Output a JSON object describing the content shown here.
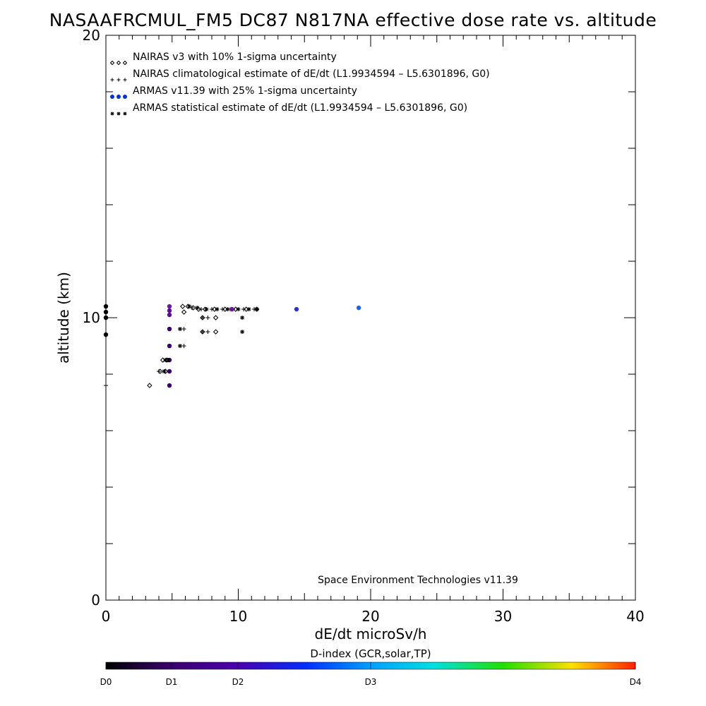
{
  "chart_data": {
    "type": "scatter",
    "title": "NASAAFRCMUL_FM5 DC87 N817NA effective dose rate vs. altitude",
    "xlabel": "dE/dt microSv/h",
    "ylabel": "altitude (km)",
    "xlim": [
      0,
      40
    ],
    "ylim": [
      0,
      20
    ],
    "x_ticks": [
      0,
      10,
      20,
      30,
      40
    ],
    "y_ticks": [
      0,
      10,
      20
    ],
    "grid": false,
    "legend_placement": "top-left",
    "credit": "Space Environment Technologies v11.39",
    "colorbar": {
      "title": "D-index (GCR,solar,TP)",
      "ticks": [
        {
          "label": "D0",
          "value": 0
        },
        {
          "label": "D1",
          "value": 1
        },
        {
          "label": "D2",
          "value": 2
        },
        {
          "label": "D3",
          "value": 3
        },
        {
          "label": "D4",
          "value": 4
        }
      ]
    },
    "series": [
      {
        "name": "NAIRAS v3 with 10% 1-sigma uncertainty",
        "marker": "diamond",
        "color": "#000000",
        "points": [
          {
            "x": 3.3,
            "y": 7.6
          },
          {
            "x": 4.1,
            "y": 8.1
          },
          {
            "x": 4.5,
            "y": 8.1
          },
          {
            "x": 4.3,
            "y": 8.5
          },
          {
            "x": 4.6,
            "y": 8.5
          },
          {
            "x": 5.9,
            "y": 10.2
          },
          {
            "x": 7.3,
            "y": 9.5
          },
          {
            "x": 8.3,
            "y": 9.5
          },
          {
            "x": 7.3,
            "y": 10.0
          },
          {
            "x": 8.3,
            "y": 10.0
          },
          {
            "x": 5.8,
            "y": 10.4
          },
          {
            "x": 6.2,
            "y": 10.4
          },
          {
            "x": 6.6,
            "y": 10.35
          },
          {
            "x": 7.0,
            "y": 10.3
          },
          {
            "x": 7.5,
            "y": 10.3
          },
          {
            "x": 8.2,
            "y": 10.3
          },
          {
            "x": 9.0,
            "y": 10.3
          },
          {
            "x": 9.8,
            "y": 10.3
          },
          {
            "x": 10.6,
            "y": 10.3
          },
          {
            "x": 11.4,
            "y": 10.3
          }
        ]
      },
      {
        "name": "NAIRAS climatological estimate of dE/dt (L1.9934594 – L5.6301896, G0)",
        "marker": "plus",
        "color": "#000000",
        "points": [
          {
            "x": 0.0,
            "y": 7.6
          },
          {
            "x": 4.0,
            "y": 8.1
          },
          {
            "x": 4.4,
            "y": 8.1
          },
          {
            "x": 5.6,
            "y": 9.0
          },
          {
            "x": 5.9,
            "y": 9.0
          },
          {
            "x": 5.6,
            "y": 9.6
          },
          {
            "x": 5.9,
            "y": 9.6
          },
          {
            "x": 7.3,
            "y": 9.5
          },
          {
            "x": 7.7,
            "y": 9.5
          },
          {
            "x": 7.3,
            "y": 10.0
          },
          {
            "x": 7.7,
            "y": 10.0
          },
          {
            "x": 6.5,
            "y": 10.35
          },
          {
            "x": 7.2,
            "y": 10.3
          },
          {
            "x": 8.0,
            "y": 10.3
          },
          {
            "x": 8.8,
            "y": 10.3
          },
          {
            "x": 9.6,
            "y": 10.3
          },
          {
            "x": 10.4,
            "y": 10.3
          },
          {
            "x": 11.2,
            "y": 10.3
          }
        ]
      },
      {
        "name": "ARMAS v11.39 with 25% 1-sigma uncertainty",
        "marker": "dot",
        "color": "#0033cc",
        "points": [
          {
            "x": 0.0,
            "y": 10.4,
            "c": "#000000"
          },
          {
            "x": 0.0,
            "y": 10.2,
            "c": "#000000"
          },
          {
            "x": 0.0,
            "y": 10.0,
            "c": "#000000"
          },
          {
            "x": 0.0,
            "y": 9.4,
            "c": "#000000"
          },
          {
            "x": 4.8,
            "y": 7.6,
            "c": "#3a006a"
          },
          {
            "x": 4.8,
            "y": 8.1,
            "c": "#3a006a"
          },
          {
            "x": 4.8,
            "y": 8.5,
            "c": "#3a006a"
          },
          {
            "x": 4.8,
            "y": 9.0,
            "c": "#3a006a"
          },
          {
            "x": 4.8,
            "y": 9.6,
            "c": "#3a006a"
          },
          {
            "x": 4.8,
            "y": 10.1,
            "c": "#5a1090"
          },
          {
            "x": 4.8,
            "y": 10.25,
            "c": "#5a1090"
          },
          {
            "x": 4.8,
            "y": 10.4,
            "c": "#6a1aa0"
          },
          {
            "x": 9.5,
            "y": 10.3,
            "c": "#6a1aa0"
          },
          {
            "x": 14.4,
            "y": 10.3,
            "c": "#2a30e0"
          },
          {
            "x": 19.1,
            "y": 10.35,
            "c": "#1f5ff0"
          }
        ]
      },
      {
        "name": "ARMAS statistical estimate of dE/dt (L1.9934594 – L5.6301896, G0)",
        "marker": "asterisk",
        "color": "#000000",
        "points": [
          {
            "x": 4.4,
            "y": 8.1
          },
          {
            "x": 4.5,
            "y": 8.5
          },
          {
            "x": 4.7,
            "y": 8.5
          },
          {
            "x": 5.6,
            "y": 9.6
          },
          {
            "x": 5.6,
            "y": 9.0
          },
          {
            "x": 10.3,
            "y": 9.5
          },
          {
            "x": 10.3,
            "y": 10.0
          },
          {
            "x": 6.3,
            "y": 10.4
          },
          {
            "x": 6.9,
            "y": 10.35
          },
          {
            "x": 7.6,
            "y": 10.3
          },
          {
            "x": 8.4,
            "y": 10.3
          },
          {
            "x": 9.2,
            "y": 10.3
          },
          {
            "x": 10.0,
            "y": 10.3
          },
          {
            "x": 10.8,
            "y": 10.3
          },
          {
            "x": 11.4,
            "y": 10.3
          }
        ]
      }
    ]
  }
}
